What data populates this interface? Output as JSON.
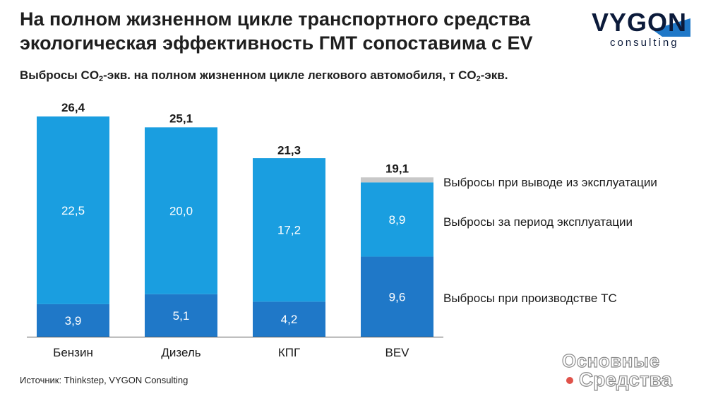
{
  "title": "На полном жизненном цикле транспортного средства экологическая эффективность ГМТ сопоставима с EV",
  "subtitle": {
    "part1": "Выбросы CO",
    "sub1": "2",
    "part2": "-экв. на полном жизненном цикле легкового автомобиля, т CO",
    "sub2": "2",
    "part3": "-экв."
  },
  "logo": {
    "word": "VYGON",
    "sub": "consulting"
  },
  "source": "Источник: Thinkstep, VYGON Consulting",
  "watermark": {
    "line1": "Основные",
    "line2": "Средства"
  },
  "colors": {
    "production": "#1f78c8",
    "operation": "#1a9ee0",
    "decommission": "#c8c8c8",
    "axis": "#555555"
  },
  "chart_data": {
    "type": "bar",
    "stacked": true,
    "categories": [
      "Бензин",
      "Дизель",
      "КПГ",
      "BEV"
    ],
    "series": [
      {
        "name": "Выбросы при производстве ТС",
        "values": [
          3.9,
          5.1,
          4.2,
          9.6
        ],
        "labels": [
          "3,9",
          "5,1",
          "4,2",
          "9,6"
        ]
      },
      {
        "name": "Выбросы за период эксплуатации",
        "values": [
          22.5,
          20.0,
          17.2,
          8.9
        ],
        "labels": [
          "22,5",
          "20,0",
          "17,2",
          "8,9"
        ]
      },
      {
        "name": "Выбросы при выводе из эксплуатации",
        "values": [
          0,
          0,
          0,
          0.6
        ],
        "labels": [
          "",
          "",
          "",
          ""
        ]
      }
    ],
    "totals": [
      26.4,
      25.1,
      21.3,
      19.1
    ],
    "total_labels": [
      "26,4",
      "25,1",
      "21,3",
      "19,1"
    ],
    "ylim": [
      0,
      26.4
    ],
    "grid": false,
    "legend_placement": "right"
  }
}
